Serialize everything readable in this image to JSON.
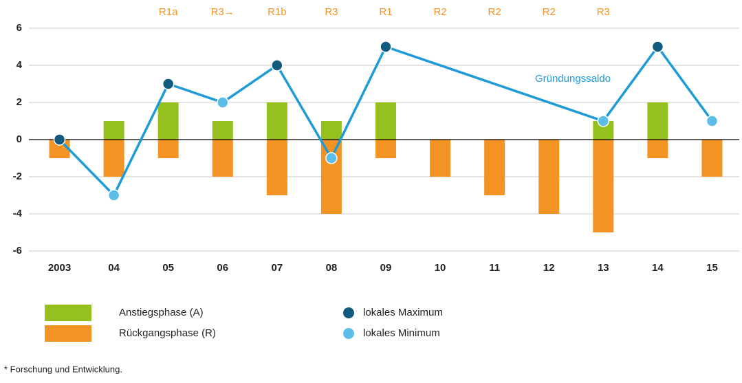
{
  "chart_data": {
    "type": "bar_line",
    "categories": [
      "2003",
      "04",
      "05",
      "06",
      "07",
      "08",
      "09",
      "10",
      "11",
      "12",
      "13",
      "14",
      "15"
    ],
    "phase_labels": [
      null,
      null,
      "R1a",
      "R3→",
      "R1b",
      "R3",
      "R1",
      "R2",
      "R2",
      "R2",
      "R3",
      null,
      null
    ],
    "phase_color": "#f39323",
    "series": [
      {
        "name": "Anstiegsphase (A)",
        "color": "#95c11f",
        "values": [
          0,
          1,
          2,
          1,
          2,
          1,
          2,
          0,
          0,
          0,
          1,
          2,
          0
        ]
      },
      {
        "name": "Rückgangsphase (R)",
        "color": "#f39323",
        "values": [
          -1,
          -2,
          -1,
          -2,
          -3,
          -4,
          -1,
          -2,
          -3,
          -4,
          -5,
          -1,
          -2
        ]
      }
    ],
    "line": {
      "name": "Gründungssaldo",
      "color": "#1e9bd7",
      "x": [
        "2003",
        "04",
        "05",
        "06",
        "07",
        "08",
        "09",
        "13",
        "14",
        "15"
      ],
      "values": [
        0,
        -3,
        3,
        2,
        4,
        -1,
        5,
        1,
        5,
        1
      ],
      "marker_colors": [
        "#135b7e",
        "#5bbde8",
        "#135b7e",
        "#5bbde8",
        "#135b7e",
        "#5bbde8",
        "#135b7e",
        "#5bbde8",
        "#135b7e",
        "#5bbde8"
      ]
    },
    "marker_legend": [
      {
        "name": "lokales Maximum",
        "color": "#135b7e"
      },
      {
        "name": "lokales Minimum",
        "color": "#5bbde8"
      }
    ],
    "ylim": [
      -6,
      6
    ],
    "yticks": [
      -6,
      -4,
      -2,
      0,
      2,
      4,
      6
    ],
    "grid": true,
    "footnote": "* Forschung und Entwicklung."
  }
}
